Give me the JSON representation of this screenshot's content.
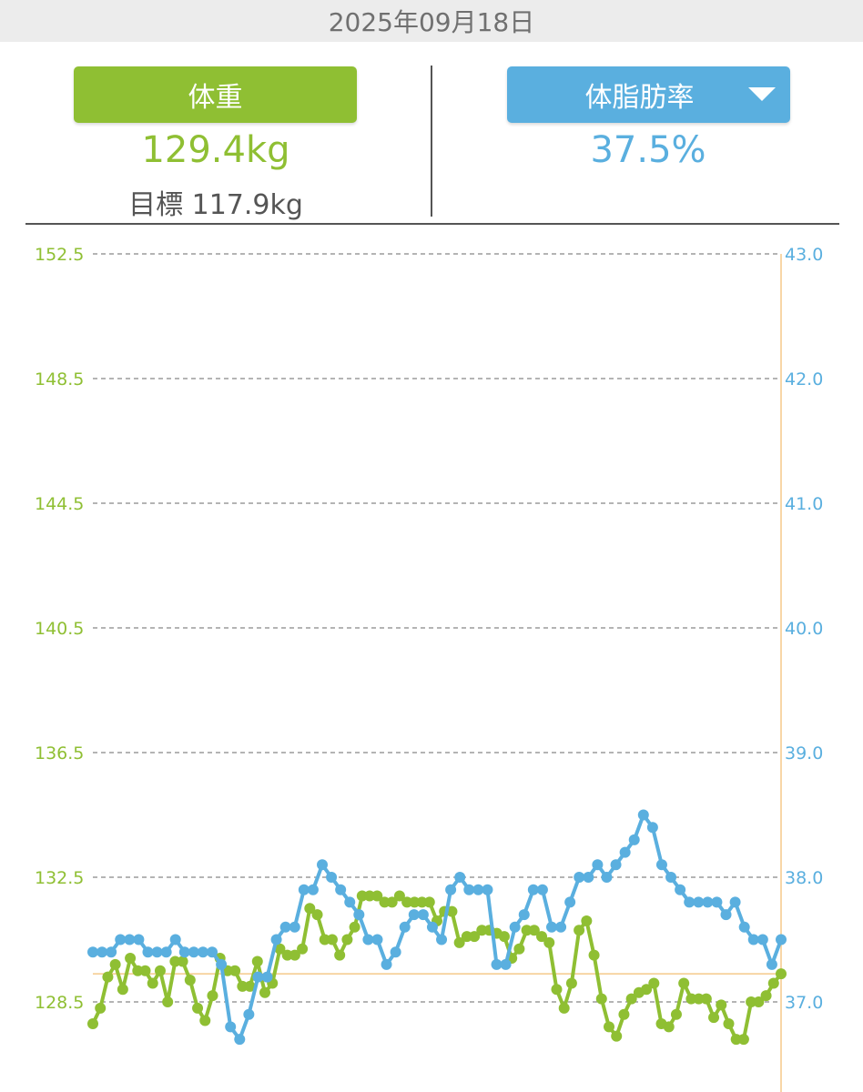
{
  "header": {
    "date": "2025年09月18日"
  },
  "weight": {
    "label": "体重",
    "value": "129.4kg",
    "target_text": "目標 117.9kg"
  },
  "body_fat": {
    "label": "体脂肪率",
    "value": "37.5%"
  },
  "colors": {
    "weight": "#8fbf33",
    "body_fat": "#5aafdf",
    "reference_line": "#f5c98a",
    "grid": "#888888"
  },
  "chart_data": {
    "type": "line",
    "grid": true,
    "left_axis": {
      "ticks": [
        "152.5",
        "148.5",
        "144.5",
        "140.5",
        "136.5",
        "132.5",
        "128.5"
      ],
      "range": [
        127.0,
        152.5
      ]
    },
    "right_axis": {
      "ticks": [
        "43.0",
        "42.0",
        "41.0",
        "40.0",
        "39.0",
        "38.0",
        "37.0"
      ],
      "range": [
        36.6,
        43.0
      ]
    },
    "reference_line_weight": 129.4,
    "series": [
      {
        "key": "weight",
        "axis": "left",
        "values": [
          127.8,
          128.3,
          129.3,
          129.7,
          128.9,
          129.9,
          129.5,
          129.5,
          129.1,
          129.5,
          128.5,
          129.8,
          129.8,
          129.2,
          128.3,
          127.9,
          128.7,
          129.9,
          129.5,
          129.5,
          129.0,
          129.0,
          129.8,
          128.8,
          129.1,
          130.2,
          130.0,
          130.0,
          130.2,
          131.5,
          131.3,
          130.5,
          130.5,
          130.0,
          130.5,
          130.9,
          131.9,
          131.9,
          131.9,
          131.7,
          131.7,
          131.9,
          131.7,
          131.7,
          131.7,
          131.7,
          131.1,
          131.4,
          131.4,
          130.4,
          130.6,
          130.6,
          130.8,
          130.8,
          130.7,
          130.6,
          129.9,
          130.2,
          130.8,
          130.8,
          130.6,
          130.4,
          128.9,
          128.3,
          129.1,
          130.8,
          131.1,
          130.0,
          128.6,
          127.7,
          127.4,
          128.1,
          128.6,
          128.8,
          128.9,
          129.1,
          127.8,
          127.7,
          128.1,
          129.1,
          128.6,
          128.6,
          128.6,
          128.0,
          128.4,
          127.8,
          127.3,
          127.3,
          128.5,
          128.5,
          128.7,
          129.1,
          129.4
        ]
      },
      {
        "key": "body_fat",
        "axis": "right",
        "values": [
          37.4,
          37.4,
          37.4,
          37.5,
          37.5,
          37.5,
          37.4,
          37.4,
          37.4,
          37.5,
          37.4,
          37.4,
          37.4,
          37.4,
          37.3,
          36.8,
          36.7,
          36.9,
          37.2,
          37.2,
          37.5,
          37.6,
          37.6,
          37.9,
          37.9,
          38.1,
          38.0,
          37.9,
          37.8,
          37.7,
          37.5,
          37.5,
          37.3,
          37.4,
          37.6,
          37.7,
          37.7,
          37.6,
          37.5,
          37.9,
          38.0,
          37.9,
          37.9,
          37.9,
          37.3,
          37.3,
          37.6,
          37.7,
          37.9,
          37.9,
          37.6,
          37.6,
          37.8,
          38.0,
          38.0,
          38.1,
          38.0,
          38.1,
          38.2,
          38.3,
          38.5,
          38.4,
          38.1,
          38.0,
          37.9,
          37.8,
          37.8,
          37.8,
          37.8,
          37.7,
          37.8,
          37.6,
          37.5,
          37.5,
          37.3,
          37.5
        ]
      }
    ]
  }
}
